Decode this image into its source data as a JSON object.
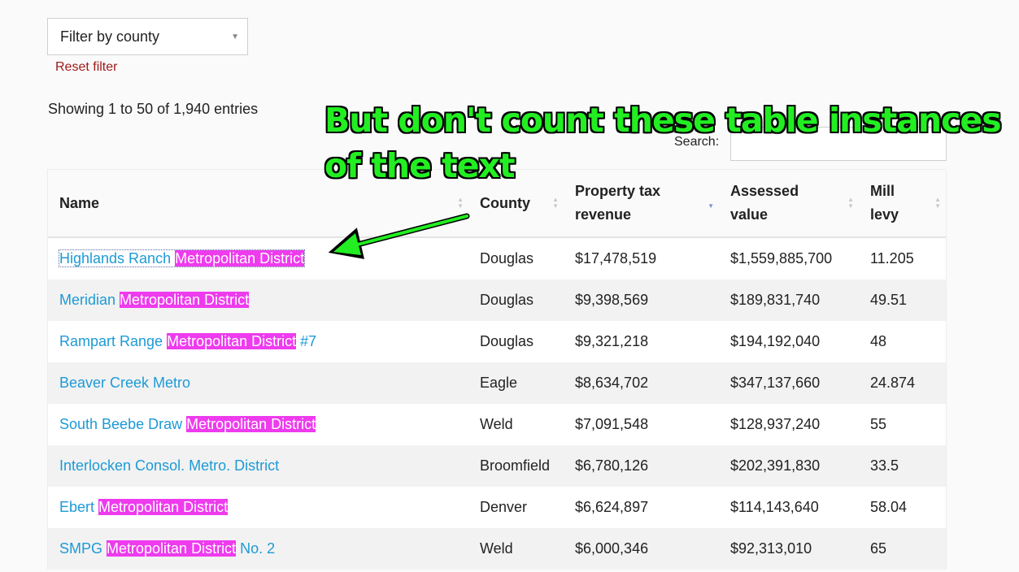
{
  "filter": {
    "label": "Filter by county",
    "reset_label": "Reset filter"
  },
  "info": {
    "showing": "Showing 1 to 50 of 1,940 entries"
  },
  "search": {
    "label": "Search:",
    "value": ""
  },
  "annotation": {
    "text": "But don't count these table instances of the text"
  },
  "table": {
    "headers": {
      "name": "Name",
      "county": "County",
      "revenue": "Property tax revenue",
      "assessed": "Assessed value",
      "mill": "Mill levy"
    },
    "rows": [
      {
        "pre": "Highlands Ranch ",
        "hl": "Metropolitan District",
        "post": "",
        "county": "Douglas",
        "revenue": "$17,478,519",
        "assessed": "$1,559,885,700",
        "mill": "11.205"
      },
      {
        "pre": "Meridian ",
        "hl": "Metropolitan District",
        "post": "",
        "county": "Douglas",
        "revenue": "$9,398,569",
        "assessed": "$189,831,740",
        "mill": "49.51"
      },
      {
        "pre": "Rampart Range ",
        "hl": "Metropolitan District",
        "post": " #7",
        "county": "Douglas",
        "revenue": "$9,321,218",
        "assessed": "$194,192,040",
        "mill": "48"
      },
      {
        "pre": "Beaver Creek Metro",
        "hl": "",
        "post": "",
        "county": "Eagle",
        "revenue": "$8,634,702",
        "assessed": "$347,137,660",
        "mill": "24.874"
      },
      {
        "pre": "South Beebe Draw ",
        "hl": "Metropolitan District",
        "post": "",
        "county": "Weld",
        "revenue": "$7,091,548",
        "assessed": "$128,937,240",
        "mill": "55"
      },
      {
        "pre": "Interlocken Consol. Metro. District",
        "hl": "",
        "post": "",
        "county": "Broomfield",
        "revenue": "$6,780,126",
        "assessed": "$202,391,830",
        "mill": "33.5"
      },
      {
        "pre": "Ebert ",
        "hl": "Metropolitan District",
        "post": "",
        "county": "Denver",
        "revenue": "$6,624,897",
        "assessed": "$114,143,640",
        "mill": "58.04"
      },
      {
        "pre": "SMPG ",
        "hl": "Metropolitan District",
        "post": " No. 2",
        "county": "Weld",
        "revenue": "$6,000,346",
        "assessed": "$92,313,010",
        "mill": "65"
      }
    ]
  }
}
